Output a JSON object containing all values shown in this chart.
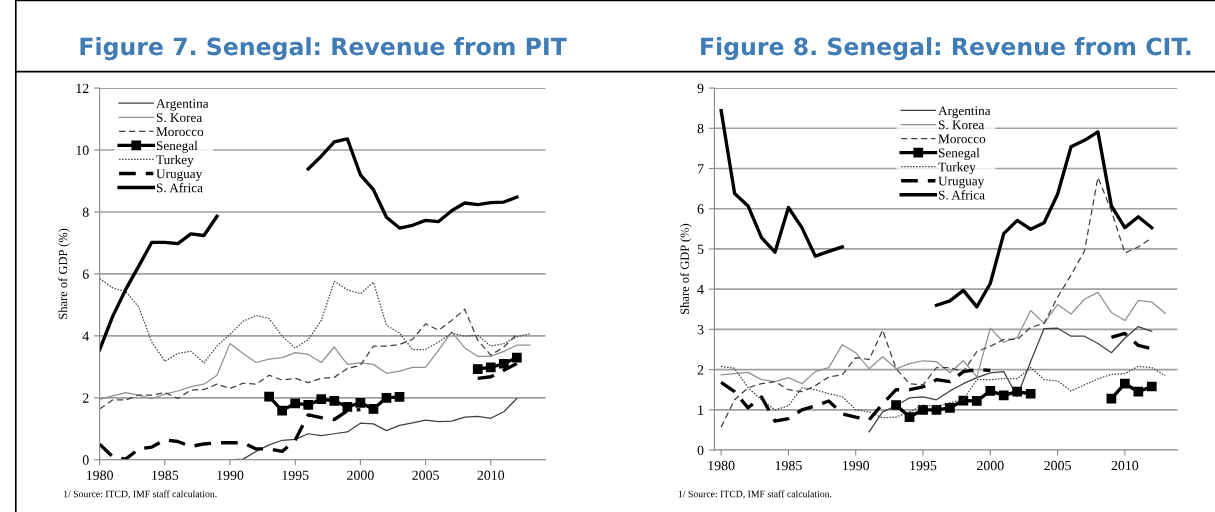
{
  "chart_data": [
    {
      "type": "line",
      "title": "Figure 7. Senegal: Revenue from PIT",
      "ylabel": "Share of GDP (%)",
      "x": [
        1980,
        1981,
        1982,
        1983,
        1984,
        1985,
        1986,
        1987,
        1988,
        1989,
        1990,
        1991,
        1992,
        1993,
        1994,
        1995,
        1996,
        1997,
        1998,
        1999,
        2000,
        2001,
        2002,
        2003,
        2004,
        2005,
        2006,
        2007,
        2008,
        2009,
        2010,
        2011,
        2012,
        2013
      ],
      "series": [
        {
          "name": "Argentina",
          "color": "#404040",
          "line_style": "solid",
          "marker": "none",
          "values": [
            null,
            null,
            null,
            null,
            null,
            null,
            null,
            null,
            null,
            null,
            0.0,
            0.02,
            0.27,
            0.48,
            0.63,
            0.66,
            0.84,
            0.78,
            0.84,
            0.9,
            1.18,
            1.16,
            0.94,
            1.11,
            1.19,
            1.28,
            1.23,
            1.25,
            1.38,
            1.4,
            1.34,
            1.55,
            1.98,
            null
          ]
        },
        {
          "name": "S. Korea",
          "color": "#909090",
          "line_style": "solid",
          "marker": "none",
          "values": [
            1.95,
            2.06,
            2.17,
            2.09,
            1.97,
            2.12,
            2.22,
            2.36,
            2.44,
            2.73,
            3.75,
            3.43,
            3.14,
            3.25,
            3.3,
            3.46,
            3.4,
            3.14,
            3.64,
            3.08,
            3.13,
            3.08,
            2.79,
            2.86,
            2.98,
            2.98,
            3.54,
            4.13,
            3.61,
            3.34,
            3.34,
            3.5,
            3.7,
            3.7
          ]
        },
        {
          "name": "Morocco",
          "color": "#404040",
          "line_style": "dashed",
          "marker": "none",
          "values": [
            1.64,
            1.93,
            1.93,
            2.09,
            2.09,
            2.17,
            1.98,
            2.25,
            2.27,
            2.44,
            2.3,
            2.47,
            2.44,
            2.73,
            2.57,
            2.63,
            2.49,
            2.63,
            2.66,
            2.95,
            3.05,
            3.67,
            3.67,
            3.72,
            3.89,
            4.39,
            4.18,
            4.5,
            4.86,
            3.86,
            3.38,
            3.64,
            4.05,
            null
          ]
        },
        {
          "name": "Senegal",
          "color": "#000000",
          "line_style": "solid",
          "marker": "square",
          "values": [
            null,
            null,
            null,
            null,
            null,
            null,
            null,
            null,
            null,
            null,
            null,
            null,
            null,
            2.04,
            1.59,
            1.82,
            1.77,
            1.96,
            1.9,
            1.71,
            1.84,
            1.64,
            2.0,
            2.03,
            null,
            null,
            null,
            null,
            null,
            2.93,
            2.98,
            3.1,
            3.3,
            null
          ]
        },
        {
          "name": "Turkey",
          "color": "#404040",
          "line_style": "dotted",
          "marker": "none",
          "values": [
            5.85,
            5.55,
            5.43,
            4.93,
            3.8,
            3.18,
            3.43,
            3.5,
            3.13,
            3.67,
            4.05,
            4.47,
            4.66,
            4.56,
            3.99,
            3.61,
            3.88,
            4.5,
            5.76,
            5.49,
            5.36,
            5.73,
            4.34,
            4.09,
            3.56,
            3.56,
            3.8,
            4.09,
            3.99,
            4.02,
            3.67,
            3.75,
            3.97,
            4.07
          ]
        },
        {
          "name": "Uruguay",
          "color": "#000000",
          "line_style": "dashed",
          "marker": "none",
          "values": [
            0.5,
            0.1,
            0.02,
            0.35,
            0.41,
            0.64,
            0.59,
            0.43,
            0.51,
            0.55,
            0.55,
            0.55,
            0.35,
            0.35,
            0.27,
            0.64,
            1.45,
            1.36,
            1.3,
            1.58,
            1.62,
            null,
            null,
            null,
            null,
            null,
            null,
            null,
            null,
            2.63,
            2.68,
            2.89,
            3.11,
            null
          ]
        },
        {
          "name": "S. Africa",
          "color": "#000000",
          "line_style": "solid",
          "marker": "none",
          "values": [
            3.55,
            4.63,
            5.5,
            6.25,
            7.02,
            7.02,
            6.98,
            7.29,
            7.24,
            7.86,
            null,
            null,
            null,
            null,
            null,
            null,
            9.39,
            9.8,
            10.26,
            10.36,
            9.2,
            8.72,
            7.83,
            7.48,
            7.57,
            7.73,
            7.69,
            8.04,
            8.29,
            8.24,
            8.3,
            8.32,
            8.48,
            null
          ]
        }
      ],
      "xlim": [
        1980,
        2014.2
      ],
      "xticks": [
        1980,
        1985,
        1990,
        1995,
        2000,
        2005,
        2010
      ],
      "ylim": [
        0,
        12
      ],
      "yticks": [
        0,
        2,
        4,
        6,
        8,
        10,
        12
      ],
      "grid": "y",
      "legend": "top left",
      "annotations": [
        "1/ Source: ITCD, IMF staff calculation."
      ]
    },
    {
      "type": "line",
      "title": "Figure 8. Senegal: Revenue from CIT.",
      "ylabel": "Share of GDP (%)",
      "x": [
        1980,
        1981,
        1982,
        1983,
        1984,
        1985,
        1986,
        1987,
        1988,
        1989,
        1990,
        1991,
        1992,
        1993,
        1994,
        1995,
        1996,
        1997,
        1998,
        1999,
        2000,
        2001,
        2002,
        2003,
        2004,
        2005,
        2006,
        2007,
        2008,
        2009,
        2010,
        2011,
        2012,
        2013
      ],
      "series": [
        {
          "name": "Argentina",
          "color": "#404040",
          "line_style": "solid",
          "marker": "none",
          "values": [
            null,
            null,
            null,
            null,
            null,
            null,
            null,
            null,
            null,
            null,
            null,
            0.45,
            0.95,
            1.1,
            1.3,
            1.32,
            1.25,
            1.47,
            1.65,
            1.8,
            1.92,
            1.95,
            1.33,
            2.2,
            3.02,
            3.03,
            2.83,
            2.83,
            2.65,
            2.42,
            2.78,
            3.07,
            2.95,
            null
          ]
        },
        {
          "name": "S. Korea",
          "color": "#909090",
          "line_style": "solid",
          "marker": "none",
          "values": [
            1.87,
            1.9,
            1.93,
            1.75,
            1.7,
            1.8,
            1.65,
            1.95,
            2.05,
            2.62,
            2.42,
            2.02,
            2.32,
            2.02,
            2.15,
            2.22,
            2.2,
            1.92,
            2.22,
            1.82,
            3.03,
            2.68,
            2.8,
            3.47,
            3.15,
            3.62,
            3.38,
            3.75,
            3.92,
            3.42,
            3.22,
            3.72,
            3.68,
            3.4
          ]
        },
        {
          "name": "Morocco",
          "color": "#404040",
          "line_style": "dashed",
          "marker": "none",
          "values": [
            0.57,
            1.25,
            1.55,
            1.65,
            1.7,
            1.5,
            1.45,
            1.6,
            1.82,
            1.87,
            2.3,
            2.25,
            2.98,
            2.02,
            1.65,
            1.62,
            2.05,
            2.05,
            1.95,
            2.45,
            2.58,
            2.75,
            2.75,
            3.05,
            3.15,
            3.8,
            4.35,
            4.95,
            6.78,
            5.95,
            4.9,
            5.05,
            5.27,
            null
          ]
        },
        {
          "name": "Senegal",
          "color": "#000000",
          "line_style": "solid",
          "marker": "square",
          "values": [
            null,
            null,
            null,
            null,
            null,
            null,
            null,
            null,
            null,
            null,
            null,
            null,
            null,
            1.12,
            0.82,
            1.0,
            1.0,
            1.05,
            1.23,
            1.22,
            1.47,
            1.36,
            1.45,
            1.4,
            null,
            null,
            null,
            null,
            null,
            1.28,
            1.65,
            1.45,
            1.58,
            null
          ]
        },
        {
          "name": "Turkey",
          "color": "#404040",
          "line_style": "dotted",
          "marker": "none",
          "values": [
            2.08,
            2.03,
            1.55,
            1.25,
            1.0,
            1.1,
            1.55,
            1.5,
            1.4,
            1.33,
            1.0,
            0.95,
            0.8,
            0.82,
            0.95,
            1.12,
            1.08,
            1.18,
            1.25,
            1.75,
            1.75,
            1.78,
            1.77,
            2.05,
            1.75,
            1.72,
            1.47,
            1.62,
            1.77,
            1.88,
            1.9,
            2.08,
            2.05,
            1.85
          ]
        },
        {
          "name": "Uruguay",
          "color": "#000000",
          "line_style": "dashed",
          "marker": "none",
          "values": [
            1.68,
            1.45,
            1.05,
            1.32,
            0.72,
            0.78,
            1.0,
            1.1,
            1.22,
            0.9,
            0.82,
            0.75,
            1.15,
            1.5,
            1.5,
            1.57,
            1.75,
            1.7,
            1.95,
            2.0,
            1.98,
            null,
            null,
            null,
            null,
            null,
            null,
            null,
            null,
            2.8,
            2.9,
            2.6,
            2.52,
            null
          ]
        },
        {
          "name": "S. Africa",
          "color": "#000000",
          "line_style": "solid",
          "marker": "none",
          "values": [
            8.44,
            6.38,
            6.07,
            5.28,
            4.92,
            6.03,
            5.53,
            4.82,
            4.94,
            5.05,
            null,
            null,
            null,
            null,
            null,
            null,
            3.6,
            3.71,
            3.97,
            3.56,
            4.14,
            5.38,
            5.71,
            5.49,
            5.65,
            6.36,
            7.54,
            7.7,
            7.91,
            6.07,
            5.53,
            5.8,
            5.53,
            null
          ]
        }
      ],
      "xlim": [
        1979.5,
        2013.9
      ],
      "xticks": [
        1980,
        1985,
        1990,
        1995,
        2000,
        2005,
        2010
      ],
      "ylim": [
        0,
        9
      ],
      "yticks": [
        0,
        1,
        2,
        3,
        4,
        5,
        6,
        7,
        8,
        9
      ],
      "grid": "y",
      "legend": "top",
      "annotations": [
        "1/ Source: ITCD, IMF staff calculation."
      ]
    }
  ]
}
